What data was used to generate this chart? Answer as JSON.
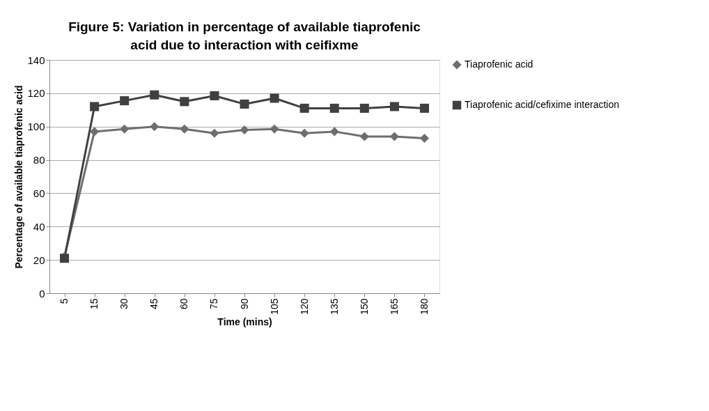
{
  "chart_data": {
    "type": "line",
    "title": "Figure 5: Variation in percentage of available tiaprofenic acid due to interaction with ceifixme",
    "xlabel": "Time (mins)",
    "ylabel": "Percentage of available tiaprofenic acid",
    "categories": [
      "5",
      "15",
      "30",
      "45",
      "60",
      "75",
      "90",
      "105",
      "120",
      "135",
      "150",
      "165",
      "180"
    ],
    "series": [
      {
        "name": "Tiaprofenic acid",
        "color": "#6e6e6e",
        "marker": "diamond",
        "values": [
          22,
          97,
          98.5,
          100,
          98.5,
          96,
          98,
          98.5,
          96,
          97,
          94,
          94,
          93
        ]
      },
      {
        "name": "Tiaprofenic acid/cefixime interaction",
        "color": "#404040",
        "marker": "square",
        "values": [
          21,
          112,
          115.5,
          119,
          115,
          118.5,
          113.5,
          117,
          111,
          111,
          111,
          112,
          111
        ]
      }
    ],
    "ylim": [
      0,
      140
    ],
    "yticks": [
      0,
      20,
      40,
      60,
      80,
      100,
      120,
      140
    ],
    "grid": "y",
    "legend": "right",
    "line_style": "solid"
  }
}
